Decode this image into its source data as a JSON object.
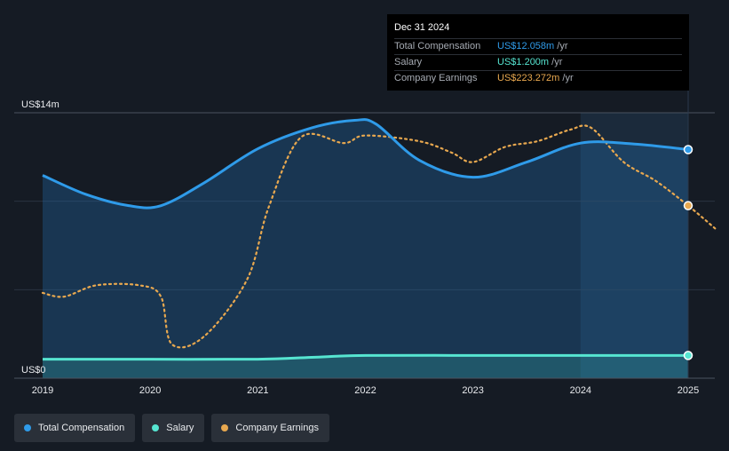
{
  "chart_data": {
    "type": "line",
    "y_unit": "US$ m",
    "ylim": [
      0,
      14
    ],
    "xlim": [
      2019,
      2025.25
    ],
    "yticks": [
      {
        "value": 14,
        "label": "US$14m"
      },
      {
        "value": 0,
        "label": "US$0"
      }
    ],
    "xticks": [
      {
        "value": 2019,
        "label": "2019"
      },
      {
        "value": 2020,
        "label": "2020"
      },
      {
        "value": 2021,
        "label": "2021"
      },
      {
        "value": 2022,
        "label": "2022"
      },
      {
        "value": 2023,
        "label": "2023"
      },
      {
        "value": 2024,
        "label": "2024"
      },
      {
        "value": 2025,
        "label": "2025"
      }
    ],
    "grid": true,
    "highlight_range": [
      2024,
      2025
    ],
    "series": [
      {
        "name": "Total Compensation",
        "color": "#2f9be9",
        "style": "solid-area",
        "points": [
          [
            2019,
            10.7
          ],
          [
            2019.4,
            9.7
          ],
          [
            2019.8,
            9.1
          ],
          [
            2020.1,
            9.1
          ],
          [
            2020.5,
            10.3
          ],
          [
            2021,
            12.1
          ],
          [
            2021.5,
            13.2
          ],
          [
            2021.9,
            13.6
          ],
          [
            2022.1,
            13.4
          ],
          [
            2022.5,
            11.5
          ],
          [
            2023,
            10.6
          ],
          [
            2023.5,
            11.4
          ],
          [
            2024,
            12.4
          ],
          [
            2024.5,
            12.35
          ],
          [
            2025,
            12.058
          ]
        ]
      },
      {
        "name": "Salary",
        "color": "#56e5d1",
        "style": "solid-area",
        "points": [
          [
            2019,
            1.0
          ],
          [
            2020,
            1.0
          ],
          [
            2021,
            1.0
          ],
          [
            2021.5,
            1.1
          ],
          [
            2022,
            1.2
          ],
          [
            2023,
            1.2
          ],
          [
            2024,
            1.2
          ],
          [
            2025,
            1.2
          ]
        ]
      },
      {
        "name": "Company Earnings",
        "color": "#e8a84f",
        "style": "dotted",
        "points": [
          [
            2019,
            4.5
          ],
          [
            2019.2,
            4.3
          ],
          [
            2019.5,
            4.9
          ],
          [
            2019.9,
            4.9
          ],
          [
            2020.1,
            4.3
          ],
          [
            2020.2,
            1.8
          ],
          [
            2020.5,
            2.2
          ],
          [
            2020.9,
            5.2
          ],
          [
            2021.1,
            9.0
          ],
          [
            2021.4,
            12.7
          ],
          [
            2021.8,
            12.4
          ],
          [
            2022,
            12.8
          ],
          [
            2022.5,
            12.5
          ],
          [
            2022.8,
            11.9
          ],
          [
            2023,
            11.4
          ],
          [
            2023.3,
            12.2
          ],
          [
            2023.6,
            12.5
          ],
          [
            2023.9,
            13.1
          ],
          [
            2024.1,
            13.2
          ],
          [
            2024.4,
            11.4
          ],
          [
            2024.7,
            10.4
          ],
          [
            2025,
            9.1
          ],
          [
            2025.25,
            7.9
          ]
        ]
      }
    ]
  },
  "tooltip": {
    "date": "Dec 31 2024",
    "rows": [
      {
        "label": "Total Compensation",
        "value": "US$12.058m",
        "unit": " /yr",
        "color": "#2f9be9"
      },
      {
        "label": "Salary",
        "value": "US$1.200m",
        "unit": " /yr",
        "color": "#56e5d1"
      },
      {
        "label": "Company Earnings",
        "value": "US$223.272m",
        "unit": " /yr",
        "color": "#e8a84f"
      }
    ]
  },
  "legend": [
    {
      "label": "Total Compensation",
      "color": "#2f9be9"
    },
    {
      "label": "Salary",
      "color": "#56e5d1"
    },
    {
      "label": "Company Earnings",
      "color": "#e8a84f"
    }
  ]
}
